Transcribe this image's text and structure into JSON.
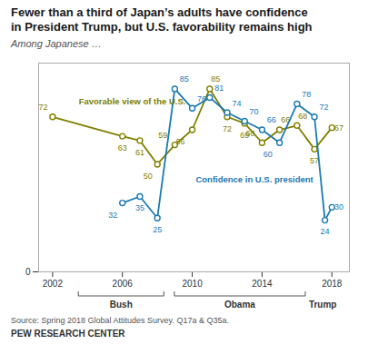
{
  "chart_data": {
    "type": "line",
    "title": "Fewer than a third of Japan’s adults have confidence\nin President Trump, but U.S. favorability remains high",
    "subtitle": "Among Japanese …",
    "source": "Source: Spring 2018 Global Attitudes Survey. Q17a & Q35a.",
    "footer": "PEW RESEARCH CENTER",
    "series": [
      {
        "name": "Favorable view of the U.S.",
        "color": "#808000",
        "marker": "circle",
        "x": [
          2002,
          2006,
          2007,
          2008,
          2009,
          2010,
          2011,
          2012,
          2013,
          2014,
          2015,
          2016,
          2017,
          2018
        ],
        "values": [
          72,
          63,
          61,
          50,
          59,
          66,
          85,
          72,
          69,
          60,
          66,
          68,
          57,
          67
        ]
      },
      {
        "name": "Confidence in U.S. president",
        "color": "#1a7ab5",
        "marker": "circle",
        "x": [
          2006,
          2007,
          2008,
          2009,
          2010,
          2011,
          2012,
          2013,
          2014,
          2015,
          2016,
          2017,
          2017.6,
          2018
        ],
        "values": [
          32,
          35,
          25,
          85,
          76,
          81,
          74,
          70,
          66,
          60,
          78,
          72,
          24,
          30
        ]
      }
    ],
    "xlim": [
      2001.2,
      2019.0
    ],
    "xticks": [
      2002,
      2006,
      2010,
      2014,
      2018
    ],
    "ylim": [
      0,
      97
    ],
    "yticks": [
      0
    ],
    "grid": false,
    "data_labels": true,
    "annotations": [
      {
        "text": "Favorable view of the U.S.",
        "x": 2003.5,
        "y": 79
      },
      {
        "text": "Confidence in U.S. president",
        "x": 2010.2,
        "y": 43
      },
      {
        "text": "Bush",
        "x0": 2003.5,
        "x1": 2008.4
      },
      {
        "text": "Obama",
        "x0": 2009.0,
        "x1": 2016.5
      },
      {
        "text": "Trump",
        "x": 2017.5
      }
    ]
  }
}
